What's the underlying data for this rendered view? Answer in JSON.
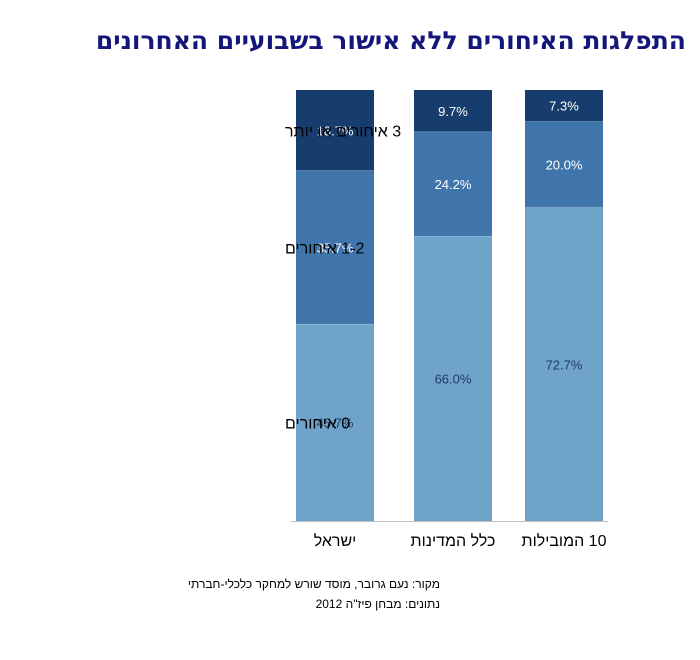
{
  "title": "התפלגות האיחורים ללא אישור בשבועיים האחרונים",
  "source_line": "מקור: נעם גרובר, מוסד שורש למחקר כלכלי-חברתי",
  "data_line": "נתונים:  מבחן פיז\"ה 2012",
  "colors": {
    "title": "#14167a",
    "segments": [
      "#70a3c9",
      "#3f75ab",
      "#173c6e"
    ],
    "segment_labels": [
      "#1e3a5f",
      "#ffffff",
      "#ffffff"
    ]
  },
  "chart_data": {
    "type": "bar",
    "stacked": true,
    "categories": [
      "ישראל",
      "כלל המדינות",
      "10 המובילות"
    ],
    "series": [
      {
        "name": "0 איחורים",
        "values": [
          45.7,
          66.0,
          72.7
        ],
        "labels": [
          "45.7%",
          "66.0%",
          "72.7%"
        ]
      },
      {
        "name": "1-2 איחורים",
        "values": [
          35.7,
          24.2,
          20.0
        ],
        "labels": [
          "35.7%",
          "24.2%",
          "20.0%"
        ]
      },
      {
        "name": "3 איחורים או יותר",
        "values": [
          18.7,
          9.7,
          7.3
        ],
        "labels": [
          "18.7%",
          "9.7%",
          "7.3%"
        ]
      }
    ],
    "ylim": [
      0,
      100
    ],
    "legend": "left, aligned with the Israel bar segments",
    "grid": false
  }
}
